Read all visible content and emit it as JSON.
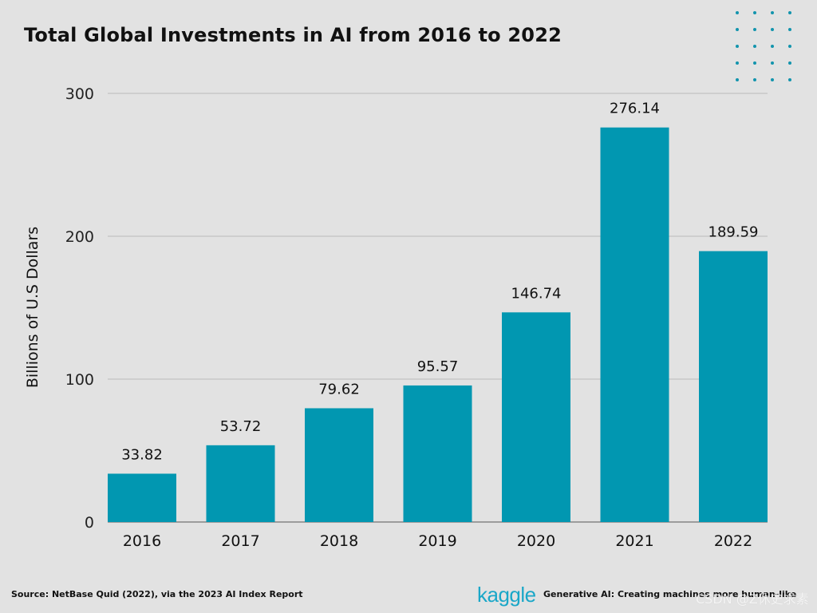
{
  "title": "Total Global Investments in AI from 2016 to 2022",
  "footer": {
    "source": "Source: NetBase Quid (2022), via the 2023 AI Index Report",
    "brand": "kaggle",
    "tagline": "Generative AI: Creating machines more human-like",
    "watermark": "CSDN @Z休史求素"
  },
  "colors": {
    "background": "#e2e2e2",
    "bar": "#0197b1",
    "grid": "#b9b9b9",
    "dots": "#1394ad"
  },
  "chart_data": {
    "type": "bar",
    "title": "Total Global Investments in AI from 2016 to 2022",
    "xlabel": "",
    "ylabel": "Billions of U.S Dollars",
    "categories": [
      "2016",
      "2017",
      "2018",
      "2019",
      "2020",
      "2021",
      "2022"
    ],
    "values": [
      33.82,
      53.72,
      79.62,
      95.57,
      146.74,
      276.14,
      189.59
    ],
    "value_labels": [
      "33.82",
      "53.72",
      "79.62",
      "95.57",
      "146.74",
      "276.14",
      "189.59"
    ],
    "ylim": [
      0,
      300
    ],
    "yticks": [
      0,
      100,
      200,
      300
    ],
    "ytick_labels": [
      "0",
      "100",
      "200",
      "300"
    ],
    "grid": true
  }
}
